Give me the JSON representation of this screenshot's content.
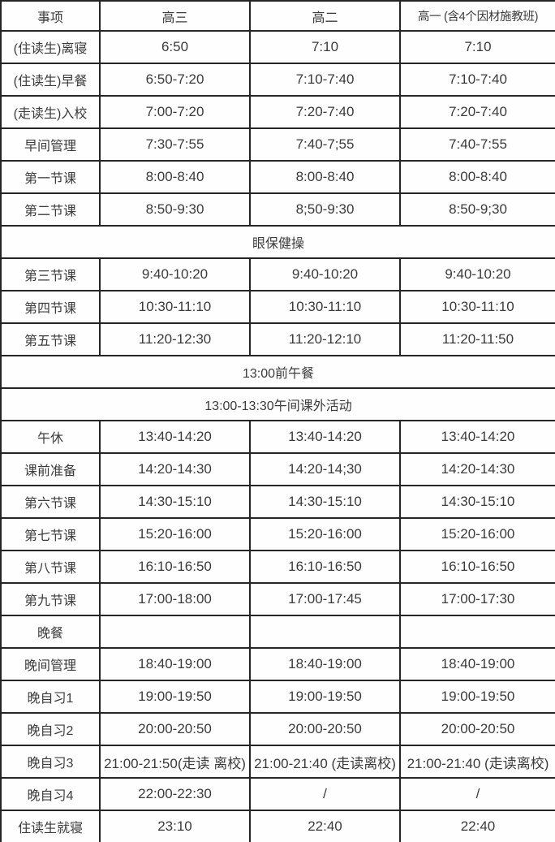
{
  "table": {
    "columns": [
      "事项",
      "高三",
      "高二",
      "高一 (含4个因材施教班)"
    ],
    "rows": [
      {
        "cells": [
          "(住读生)离寝",
          "6:50",
          "7:10",
          "7:10"
        ]
      },
      {
        "cells": [
          "(住读生)早餐",
          "6:50-7:20",
          "7:10-7:40",
          "7:10-7:40"
        ]
      },
      {
        "cells": [
          "(走读生)入校",
          "7:00-7:20",
          "7:20-7:40",
          "7:20-7:40"
        ]
      },
      {
        "cells": [
          "早间管理",
          "7:30-7:55",
          "7:40-7;55",
          "7:40-7:55"
        ]
      },
      {
        "cells": [
          "第一节课",
          "8:00-8:40",
          "8:00-8:40",
          "8:00-8:40"
        ]
      },
      {
        "cells": [
          "第二节课",
          "8:50-9:30",
          "8;50-9:30",
          "8:50-9;30"
        ]
      },
      {
        "span": "眼保健操"
      },
      {
        "cells": [
          "第三节课",
          "9:40-10:20",
          "9:40-10:20",
          "9:40-10:20"
        ]
      },
      {
        "cells": [
          "第四节课",
          "10:30-11:10",
          "10:30-11:10",
          "10:30-11:10"
        ]
      },
      {
        "cells": [
          "第五节课",
          "11:20-12:30",
          "11:20-12:10",
          "11:20-11:50"
        ]
      },
      {
        "span": "13:00前午餐"
      },
      {
        "span": "13:00-13:30午间课外活动"
      },
      {
        "cells": [
          "午休",
          "13:40-14:20",
          "13:40-14:20",
          "13:40-14:20"
        ]
      },
      {
        "cells": [
          "课前准备",
          "14:20-14:30",
          "14:20-14;30",
          "14:20-14:30"
        ]
      },
      {
        "cells": [
          "第六节课",
          "14:30-15:10",
          "14:30-15:10",
          "14:30-15:10"
        ]
      },
      {
        "cells": [
          "第七节课",
          "15:20-16:00",
          "15:20-16:00",
          "15:20-16:00"
        ]
      },
      {
        "cells": [
          "第八节课",
          "16:10-16:50",
          "16:10-16:50",
          "16:10-16:50"
        ]
      },
      {
        "cells": [
          "第九节课",
          "17:00-18:00",
          "17:00-17:45",
          "17:00-17:30"
        ]
      },
      {
        "cells": [
          "晚餐",
          "",
          "",
          ""
        ]
      },
      {
        "cells": [
          "晚间管理",
          "18:40-19:00",
          "18:40-19:00",
          "18:40-19:00"
        ]
      },
      {
        "cells": [
          "晚自习1",
          "19:00-19:50",
          "19:00-19:50",
          "19:00-19:50"
        ]
      },
      {
        "cells": [
          "晚自习2",
          "20:00-20:50",
          "20:00-20:50",
          "20:00-20:50"
        ]
      },
      {
        "cells": [
          "晚自习3",
          "21:00-21:50(走读 离校)",
          "21:00-21:40 (走读离校)",
          "21:00-21:40 (走读离校)"
        ]
      },
      {
        "cells": [
          "晚自习4",
          "22:00-22:30",
          "/",
          "/"
        ]
      },
      {
        "cells": [
          "住读生就寝",
          "23:10",
          "22:40",
          "22:40"
        ]
      }
    ],
    "colors": {
      "border": "#252525",
      "text": "#3b3b3b",
      "background": "#fefefe"
    }
  }
}
